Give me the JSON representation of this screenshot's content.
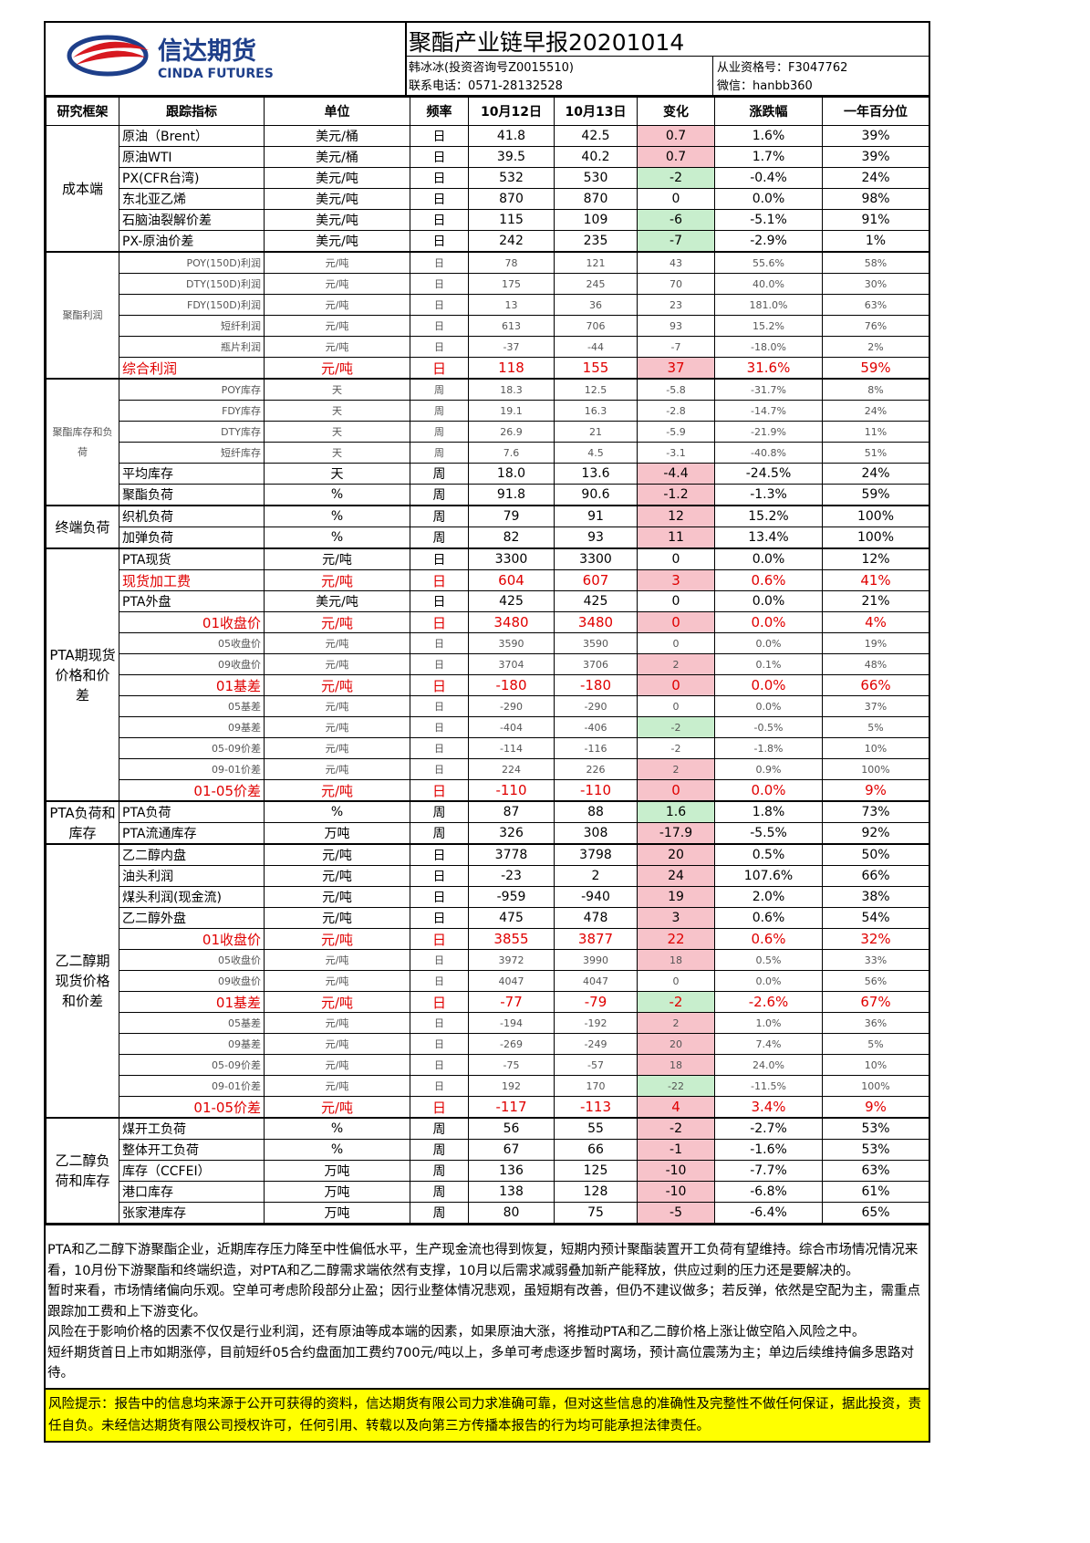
{
  "header": {
    "logo_cn": "信达期货",
    "logo_en": "CINDA FUTURES",
    "title": "聚酯产业链早报20201014",
    "author": "韩冰冰(投资咨询号Z0015510)",
    "phone": "联系电话：0571-28132528",
    "license": "从业资格号：F3047762",
    "wechat": "微信：hanbb360"
  },
  "table": {
    "headers": [
      "研究框架",
      "跟踪指标",
      "单位",
      "频率",
      "10月12日",
      "10月13日",
      "变化",
      "涨跌幅",
      "一年百分位"
    ],
    "colors": {
      "up": "#f7c3ca",
      "down": "#c8eecd"
    },
    "groups": [
      {
        "label": "成本端",
        "rows": [
          {
            "style": "normal",
            "cells": [
              "原油（Brent）",
              "美元/桶",
              "日",
              "41.8",
              "42.5",
              "0.7",
              "1.6%",
              "39%"
            ],
            "highlight": "up"
          },
          {
            "style": "normal",
            "cells": [
              "原油WTI",
              "美元/桶",
              "日",
              "39.5",
              "40.2",
              "0.7",
              "1.7%",
              "39%"
            ],
            "highlight": "up"
          },
          {
            "style": "normal",
            "cells": [
              "PX(CFR台湾)",
              "美元/吨",
              "日",
              "532",
              "530",
              "-2",
              "-0.4%",
              "24%"
            ],
            "highlight": "down"
          },
          {
            "style": "normal",
            "cells": [
              "东北亚乙烯",
              "美元/吨",
              "日",
              "870",
              "870",
              "0",
              "0.0%",
              "98%"
            ]
          },
          {
            "style": "normal",
            "cells": [
              "石脑油裂解价差",
              "美元/吨",
              "日",
              "115",
              "109",
              "-6",
              "-5.1%",
              "91%"
            ],
            "highlight": "down"
          },
          {
            "style": "normal",
            "cells": [
              "PX-原油价差",
              "美元/吨",
              "日",
              "242",
              "235",
              "-7",
              "-2.9%",
              "1%"
            ],
            "highlight": "down"
          }
        ]
      },
      {
        "label": "聚酯利润",
        "rows": [
          {
            "style": "small",
            "cells": [
              "POY(150D)利润",
              "元/吨",
              "日",
              "78",
              "121",
              "43",
              "55.6%",
              "58%"
            ]
          },
          {
            "style": "small",
            "cells": [
              "DTY(150D)利润",
              "元/吨",
              "日",
              "175",
              "245",
              "70",
              "40.0%",
              "30%"
            ]
          },
          {
            "style": "small",
            "cells": [
              "FDY(150D)利润",
              "元/吨",
              "日",
              "13",
              "36",
              "23",
              "181.0%",
              "63%"
            ]
          },
          {
            "style": "small",
            "cells": [
              "短纤利润",
              "元/吨",
              "日",
              "613",
              "706",
              "93",
              "15.2%",
              "76%"
            ]
          },
          {
            "style": "small",
            "cells": [
              "瓶片利润",
              "元/吨",
              "日",
              "-37",
              "-44",
              "-7",
              "-18.0%",
              "2%"
            ]
          },
          {
            "style": "red",
            "cells": [
              "综合利润",
              "元/吨",
              "日",
              "118",
              "155",
              "37",
              "31.6%",
              "59%"
            ],
            "highlight": "up"
          }
        ]
      },
      {
        "label": "聚酯库存和负荷",
        "rows": [
          {
            "style": "small",
            "cells": [
              "POY库存",
              "天",
              "周",
              "18.3",
              "12.5",
              "-5.8",
              "-31.7%",
              "8%"
            ]
          },
          {
            "style": "small",
            "cells": [
              "FDY库存",
              "天",
              "周",
              "19.1",
              "16.3",
              "-2.8",
              "-14.7%",
              "24%"
            ]
          },
          {
            "style": "small",
            "cells": [
              "DTY库存",
              "天",
              "周",
              "26.9",
              "21",
              "-5.9",
              "-21.9%",
              "11%"
            ]
          },
          {
            "style": "small",
            "cells": [
              "短纤库存",
              "天",
              "周",
              "7.6",
              "4.5",
              "-3.1",
              "-40.8%",
              "51%"
            ]
          },
          {
            "style": "normal",
            "cells": [
              "平均库存",
              "天",
              "周",
              "18.0",
              "13.6",
              "-4.4",
              "-24.5%",
              "24%"
            ],
            "highlight": "up"
          },
          {
            "style": "normal",
            "cells": [
              "聚酯负荷",
              "%",
              "周",
              "91.8",
              "90.6",
              "-1.2",
              "-1.3%",
              "59%"
            ],
            "highlight": "up"
          }
        ]
      },
      {
        "label": "终端负荷",
        "rows": [
          {
            "style": "normal",
            "cells": [
              "织机负荷",
              "%",
              "周",
              "79",
              "91",
              "12",
              "15.2%",
              "100%"
            ],
            "highlight": "up"
          },
          {
            "style": "normal",
            "cells": [
              "加弹负荷",
              "%",
              "周",
              "82",
              "93",
              "11",
              "13.4%",
              "100%"
            ],
            "highlight": "up"
          }
        ]
      },
      {
        "label": "PTA期现货价格和价差",
        "rows": [
          {
            "style": "normal",
            "cells": [
              "PTA现货",
              "元/吨",
              "日",
              "3300",
              "3300",
              "0",
              "0.0%",
              "12%"
            ]
          },
          {
            "style": "red",
            "cells": [
              "现货加工费",
              "元/吨",
              "日",
              "604",
              "607",
              "3",
              "0.6%",
              "41%"
            ],
            "highlight": "up"
          },
          {
            "style": "normal",
            "cells": [
              "PTA外盘",
              "美元/吨",
              "日",
              "425",
              "425",
              "0",
              "0.0%",
              "21%"
            ]
          },
          {
            "style": "red-right",
            "cells": [
              "01收盘价",
              "元/吨",
              "日",
              "3480",
              "3480",
              "0",
              "0.0%",
              "4%"
            ],
            "highlight": "up"
          },
          {
            "style": "small",
            "cells": [
              "05收盘价",
              "元/吨",
              "日",
              "3590",
              "3590",
              "0",
              "0.0%",
              "19%"
            ]
          },
          {
            "style": "small",
            "cells": [
              "09收盘价",
              "元/吨",
              "日",
              "3704",
              "3706",
              "2",
              "0.1%",
              "48%"
            ],
            "highlight": "up"
          },
          {
            "style": "red-right",
            "cells": [
              "01基差",
              "元/吨",
              "日",
              "-180",
              "-180",
              "0",
              "0.0%",
              "66%"
            ],
            "highlight": "up"
          },
          {
            "style": "small",
            "cells": [
              "05基差",
              "元/吨",
              "日",
              "-290",
              "-290",
              "0",
              "0.0%",
              "37%"
            ]
          },
          {
            "style": "small",
            "cells": [
              "09基差",
              "元/吨",
              "日",
              "-404",
              "-406",
              "-2",
              "-0.5%",
              "5%"
            ],
            "highlight": "down"
          },
          {
            "style": "small",
            "cells": [
              "05-09价差",
              "元/吨",
              "日",
              "-114",
              "-116",
              "-2",
              "-1.8%",
              "10%"
            ]
          },
          {
            "style": "small",
            "cells": [
              "09-01价差",
              "元/吨",
              "日",
              "224",
              "226",
              "2",
              "0.9%",
              "100%"
            ],
            "highlight": "up"
          },
          {
            "style": "red-right",
            "cells": [
              "01-05价差",
              "元/吨",
              "日",
              "-110",
              "-110",
              "0",
              "0.0%",
              "9%"
            ],
            "highlight": "up"
          }
        ]
      },
      {
        "label": "PTA负荷和库存",
        "rows": [
          {
            "style": "normal",
            "cells": [
              "PTA负荷",
              "%",
              "周",
              "87",
              "88",
              "1.6",
              "1.8%",
              "73%"
            ],
            "highlight": "down"
          },
          {
            "style": "normal",
            "cells": [
              "PTA流通库存",
              "万吨",
              "周",
              "326",
              "308",
              "-17.9",
              "-5.5%",
              "92%"
            ],
            "highlight": "up"
          }
        ]
      },
      {
        "label": "乙二醇期现货价格和价差",
        "rows": [
          {
            "style": "normal",
            "cells": [
              "乙二醇内盘",
              "元/吨",
              "日",
              "3778",
              "3798",
              "20",
              "0.5%",
              "50%"
            ],
            "highlight": "up"
          },
          {
            "style": "normal",
            "cells": [
              "油头利润",
              "元/吨",
              "日",
              "-23",
              "2",
              "24",
              "107.6%",
              "66%"
            ],
            "highlight": "up"
          },
          {
            "style": "normal",
            "cells": [
              "煤头利润(现金流)",
              "元/吨",
              "日",
              "-959",
              "-940",
              "19",
              "2.0%",
              "38%"
            ],
            "highlight": "up"
          },
          {
            "style": "normal",
            "cells": [
              "乙二醇外盘",
              "元/吨",
              "日",
              "475",
              "478",
              "3",
              "0.6%",
              "54%"
            ],
            "highlight": "up"
          },
          {
            "style": "red-right",
            "cells": [
              "01收盘价",
              "元/吨",
              "日",
              "3855",
              "3877",
              "22",
              "0.6%",
              "32%"
            ],
            "highlight": "up"
          },
          {
            "style": "small",
            "cells": [
              "05收盘价",
              "元/吨",
              "日",
              "3972",
              "3990",
              "18",
              "0.5%",
              "33%"
            ],
            "highlight": "up"
          },
          {
            "style": "small",
            "cells": [
              "09收盘价",
              "元/吨",
              "日",
              "4047",
              "4047",
              "0",
              "0.0%",
              "56%"
            ]
          },
          {
            "style": "red-right",
            "cells": [
              "01基差",
              "元/吨",
              "日",
              "-77",
              "-79",
              "-2",
              "-2.6%",
              "67%"
            ],
            "highlight": "down"
          },
          {
            "style": "small",
            "cells": [
              "05基差",
              "元/吨",
              "日",
              "-194",
              "-192",
              "2",
              "1.0%",
              "36%"
            ],
            "highlight": "up"
          },
          {
            "style": "small",
            "cells": [
              "09基差",
              "元/吨",
              "日",
              "-269",
              "-249",
              "20",
              "7.4%",
              "5%"
            ],
            "highlight": "up"
          },
          {
            "style": "small",
            "cells": [
              "05-09价差",
              "元/吨",
              "日",
              "-75",
              "-57",
              "18",
              "24.0%",
              "10%"
            ],
            "highlight": "up"
          },
          {
            "style": "small",
            "cells": [
              "09-01价差",
              "元/吨",
              "日",
              "192",
              "170",
              "-22",
              "-11.5%",
              "100%"
            ],
            "highlight": "down"
          },
          {
            "style": "red-right",
            "cells": [
              "01-05价差",
              "元/吨",
              "日",
              "-117",
              "-113",
              "4",
              "3.4%",
              "9%"
            ],
            "highlight": "up"
          }
        ]
      },
      {
        "label": "乙二醇负荷和库存",
        "rows": [
          {
            "style": "normal",
            "cells": [
              "煤开工负荷",
              "%",
              "周",
              "56",
              "55",
              "-2",
              "-2.7%",
              "53%"
            ],
            "highlight": "up"
          },
          {
            "style": "normal",
            "cells": [
              "整体开工负荷",
              "%",
              "周",
              "67",
              "66",
              "-1",
              "-1.6%",
              "53%"
            ],
            "highlight": "up"
          },
          {
            "style": "normal",
            "cells": [
              "库存（CCFEI）",
              "万吨",
              "周",
              "136",
              "125",
              "-10",
              "-7.7%",
              "63%"
            ],
            "highlight": "up"
          },
          {
            "style": "normal",
            "cells": [
              "港口库存",
              "万吨",
              "周",
              "138",
              "128",
              "-10",
              "-6.8%",
              "61%"
            ],
            "highlight": "up"
          },
          {
            "style": "normal",
            "cells": [
              "张家港库存",
              "万吨",
              "周",
              "80",
              "75",
              "-5",
              "-6.4%",
              "65%"
            ],
            "highlight": "up"
          }
        ]
      }
    ]
  },
  "notes": [
    "PTA和乙二醇下游聚酯企业，近期库存压力降至中性偏低水平，生产现金流也得到恢复，短期内预计聚酯装置开工负荷有望维持。综合市场情况情况来看，10月份下游聚酯和终端织造，对PTA和乙二醇需求端依然有支撑，10月以后需求减弱叠加新产能释放，供应过剩的压力还是要解决的。",
    "暂时来看，市场情绪偏向乐观。空单可考虑阶段部分止盈；因行业整体情况悲观，虽短期有改善，但仍不建议做多；若反弹，依然是空配为主，需重点跟踪加工费和上下游变化。",
    "风险在于影响价格的因素不仅仅是行业利润，还有原油等成本端的因素，如果原油大涨，将推动PTA和乙二醇价格上涨让做空陷入风险之中。",
    "短纤期货首日上市如期涨停，目前短纤05合约盘面加工费约700元/吨以上，多单可考虑逐步暂时离场，预计高位震荡为主；单边后续维持偏多思路对待。"
  ],
  "disclaimer": "风险提示：报告中的信息均来源于公开可获得的资料，信达期货有限公司力求准确可靠，但对这些信息的准确性及完整性不做任何保证，据此投资，责任自负。未经信达期货有限公司授权许可，任何引用、转载以及向第三方传播本报告的行为均可能承担法律责任。"
}
